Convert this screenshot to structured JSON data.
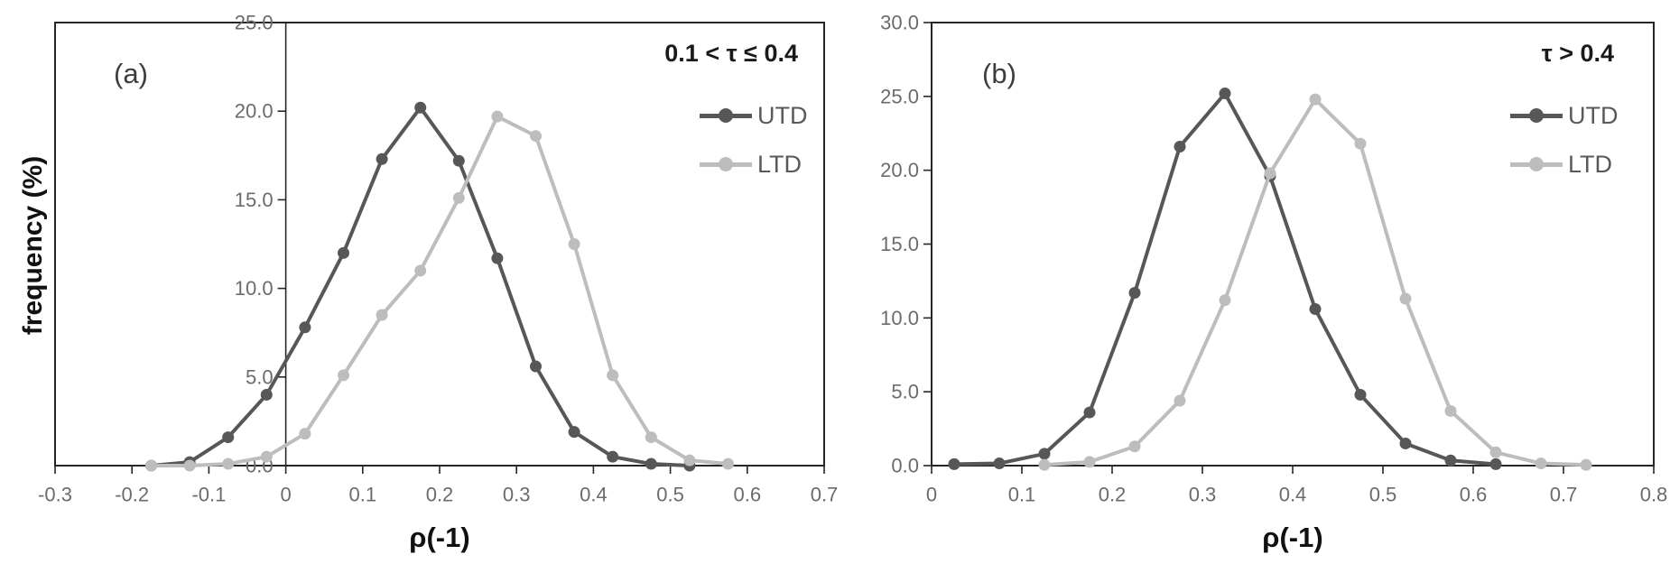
{
  "figure": {
    "ylabel": "frequency (%)"
  },
  "colors": {
    "utd": "#575757",
    "ltd": "#bdbdbd",
    "axis": "#262626",
    "tick_text": "#6b6b6b"
  },
  "chart_data": [
    {
      "type": "line",
      "panel_label": "(a)",
      "annotation": "0.1 < τ ≤ 0.4",
      "xlabel": "ρ(-1)",
      "ylabel": "frequency (%)",
      "xlim": [
        -0.3,
        0.7
      ],
      "ylim": [
        0,
        25
      ],
      "grid": false,
      "legend_position": "inside-top-right",
      "y_axis_at_x": 0,
      "x_tick_values": [
        -0.3,
        -0.2,
        -0.1,
        0,
        0.1,
        0.2,
        0.3,
        0.4,
        0.5,
        0.6,
        0.7
      ],
      "x_tick_labels": [
        "-0.3",
        "-0.2",
        "-0.1",
        "0",
        "0.1",
        "0.2",
        "0.3",
        "0.4",
        "0.5",
        "0.6",
        "0.7"
      ],
      "y_tick_values": [
        0,
        5,
        10,
        15,
        20,
        25
      ],
      "y_tick_labels": [
        "0.0",
        "5.0",
        "10.0",
        "15.0",
        "20.0",
        "25.0"
      ],
      "series": [
        {
          "name": "UTD",
          "color": "#575757",
          "x": [
            -0.175,
            -0.125,
            -0.075,
            -0.025,
            0.025,
            0.075,
            0.125,
            0.175,
            0.225,
            0.275,
            0.325,
            0.375,
            0.425,
            0.475,
            0.525
          ],
          "values": [
            0.0,
            0.2,
            1.6,
            4.0,
            7.8,
            12.0,
            17.3,
            20.2,
            17.2,
            11.7,
            5.6,
            1.9,
            0.5,
            0.1,
            0.0
          ]
        },
        {
          "name": "LTD",
          "color": "#bdbdbd",
          "x": [
            -0.175,
            -0.125,
            -0.075,
            -0.025,
            0.025,
            0.075,
            0.125,
            0.175,
            0.225,
            0.275,
            0.325,
            0.375,
            0.425,
            0.475,
            0.525,
            0.575
          ],
          "values": [
            0.0,
            0.0,
            0.1,
            0.5,
            1.8,
            5.1,
            8.5,
            11.0,
            15.1,
            19.7,
            18.6,
            12.5,
            5.1,
            1.6,
            0.3,
            0.1
          ]
        }
      ]
    },
    {
      "type": "line",
      "panel_label": "(b)",
      "annotation": "τ > 0.4",
      "xlabel": "ρ(-1)",
      "ylabel": "",
      "xlim": [
        0,
        0.8
      ],
      "ylim": [
        0,
        30
      ],
      "grid": false,
      "legend_position": "inside-top-right",
      "y_axis_at_x": 0,
      "x_tick_values": [
        0,
        0.1,
        0.2,
        0.3,
        0.4,
        0.5,
        0.6,
        0.7,
        0.8
      ],
      "x_tick_labels": [
        "0",
        "0.1",
        "0.2",
        "0.3",
        "0.4",
        "0.5",
        "0.6",
        "0.7",
        "0.8"
      ],
      "y_tick_values": [
        0,
        5,
        10,
        15,
        20,
        25,
        30
      ],
      "y_tick_labels": [
        "0.0",
        "5.0",
        "10.0",
        "15.0",
        "20.0",
        "25.0",
        "30.0"
      ],
      "series": [
        {
          "name": "UTD",
          "color": "#575757",
          "x": [
            0.025,
            0.075,
            0.125,
            0.175,
            0.225,
            0.275,
            0.325,
            0.375,
            0.425,
            0.475,
            0.525,
            0.575,
            0.625
          ],
          "values": [
            0.1,
            0.15,
            0.8,
            3.6,
            11.7,
            21.6,
            25.2,
            19.6,
            10.6,
            4.8,
            1.5,
            0.35,
            0.1
          ]
        },
        {
          "name": "LTD",
          "color": "#bdbdbd",
          "x": [
            0.125,
            0.175,
            0.225,
            0.275,
            0.325,
            0.375,
            0.425,
            0.475,
            0.525,
            0.575,
            0.625,
            0.675,
            0.725
          ],
          "values": [
            0.05,
            0.25,
            1.3,
            4.4,
            11.2,
            19.8,
            24.8,
            21.8,
            11.3,
            3.7,
            0.9,
            0.15,
            0.05
          ]
        }
      ]
    }
  ]
}
